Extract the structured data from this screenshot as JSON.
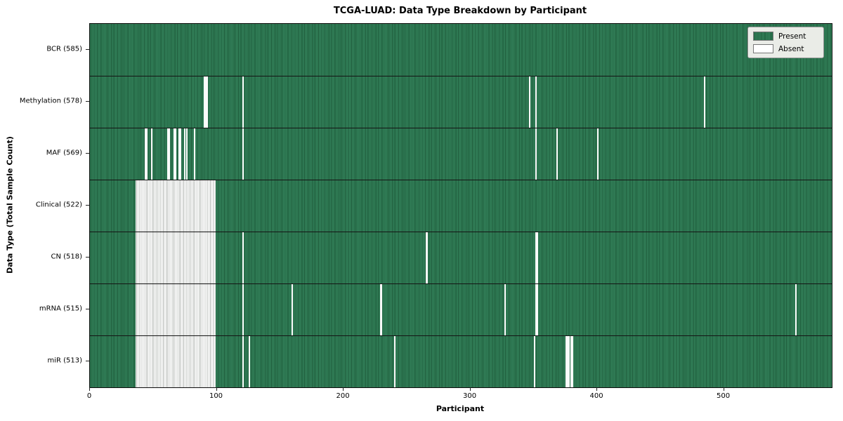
{
  "figure": {
    "background": "#ffffff"
  },
  "chart_data": {
    "type": "heatmap",
    "title": "TCGA-LUAD: Data Type Breakdown by Participant",
    "xlabel": "Participant",
    "ylabel": "Data Type (Total Sample Count)",
    "n_participants": 585,
    "x_ticks": [
      0,
      100,
      200,
      300,
      400,
      500
    ],
    "grid": false,
    "legend_position": "upper right",
    "colors": {
      "present": "#2e8155",
      "present_edge": "#1e5a3a",
      "absent": "#ffffff",
      "absent_edge": "#b4b8b4",
      "row_divider": "#141414",
      "plot_border": "#0d0d0d",
      "legend_bg": "#eaece7"
    },
    "legend": [
      {
        "label": "Present",
        "color": "#2e8155"
      },
      {
        "label": "Absent",
        "color": "#ffffff"
      }
    ],
    "rows": [
      {
        "label": "BCR (585)",
        "data_type": "BCR",
        "present_count": 585,
        "absent_count": 0,
        "absent": []
      },
      {
        "label": "Methylation (578)",
        "data_type": "Methylation",
        "present_count": 578,
        "absent_count": 7,
        "absent": [
          90,
          91,
          92,
          120,
          346,
          351,
          484
        ]
      },
      {
        "label": "MAF (569)",
        "data_type": "MAF",
        "present_count": 569,
        "absent_count": 16,
        "absent": [
          43,
          44,
          48,
          61,
          62,
          66,
          67,
          70,
          71,
          74,
          76,
          82,
          120,
          351,
          368,
          400
        ]
      },
      {
        "label": "Clinical (522)",
        "data_type": "Clinical",
        "present_count": 522,
        "absent_count": 63,
        "absent": [
          [
            36,
            98
          ]
        ]
      },
      {
        "label": "CN (518)",
        "data_type": "CN",
        "present_count": 518,
        "absent_count": 67,
        "absent": [
          [
            36,
            98
          ],
          120,
          265,
          351,
          352
        ]
      },
      {
        "label": "mRNA (515)",
        "data_type": "mRNA",
        "present_count": 515,
        "absent_count": 70,
        "absent": [
          [
            36,
            98
          ],
          120,
          159,
          229,
          327,
          351,
          352,
          556
        ]
      },
      {
        "label": "miR (513)",
        "data_type": "miR",
        "present_count": 513,
        "absent_count": 72,
        "absent": [
          [
            36,
            98
          ],
          120,
          125,
          240,
          350,
          375,
          376,
          377,
          379,
          380
        ]
      }
    ]
  }
}
